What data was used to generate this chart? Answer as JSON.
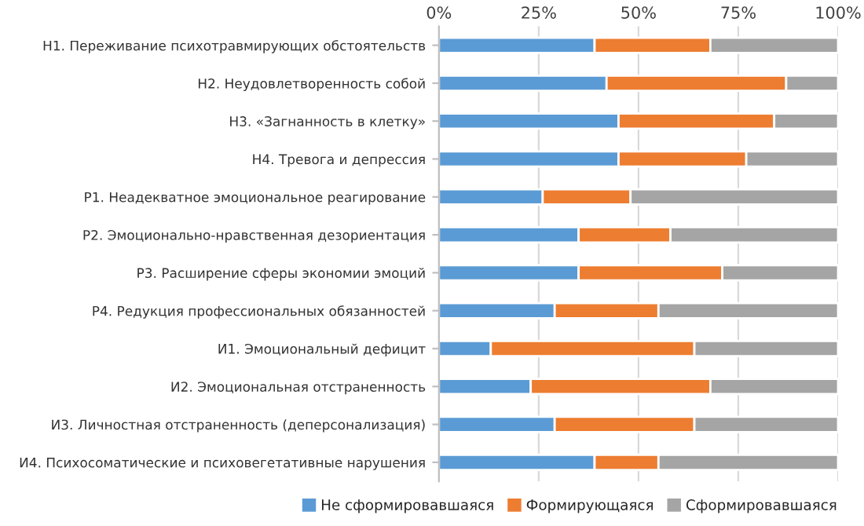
{
  "chart_data": {
    "type": "bar",
    "orientation": "horizontal",
    "stacked": true,
    "categories": [
      "Н1. Переживание психотравмирующих обстоятельств",
      "Н2. Неудовлетворенность собой",
      "Н3. «Загнанность в клетку»",
      "Н4. Тревога и депрессия",
      "Р1. Неадекватное эмоциональное реагирование",
      "Р2. Эмоционально-нравственная дезориентация",
      "Р3. Расширение сферы экономии эмоций",
      "Р4. Редукция профессиональных обязанностей",
      "И1. Эмоциональный дефицит",
      "И2. Эмоциональная отстраненность",
      "И3. Личностная отстраненность (деперсонализация)",
      "И4. Психосоматические и психовегетативные нарушения"
    ],
    "series": [
      {
        "name": "Не сформировавшаяся",
        "color": "#5b9bd5",
        "values": [
          39,
          42,
          45,
          45,
          26,
          35,
          35,
          29,
          13,
          23,
          29,
          39
        ]
      },
      {
        "name": "Формирующаяся",
        "color": "#ed7d31",
        "values": [
          29,
          45,
          39,
          32,
          22,
          23,
          36,
          26,
          51,
          45,
          35,
          16
        ]
      },
      {
        "name": "Сформировавшаяся",
        "color": "#a5a5a5",
        "values": [
          32,
          13,
          16,
          23,
          52,
          42,
          29,
          45,
          36,
          32,
          36,
          45
        ]
      }
    ],
    "xlim": [
      0,
      100
    ],
    "xticks": [
      {
        "value": 0,
        "label": "0%"
      },
      {
        "value": 25,
        "label": "25%"
      },
      {
        "value": 50,
        "label": "50%"
      },
      {
        "value": 75,
        "label": "75%"
      },
      {
        "value": 100,
        "label": "100%"
      }
    ],
    "grid": "x",
    "legend": "bottom"
  }
}
